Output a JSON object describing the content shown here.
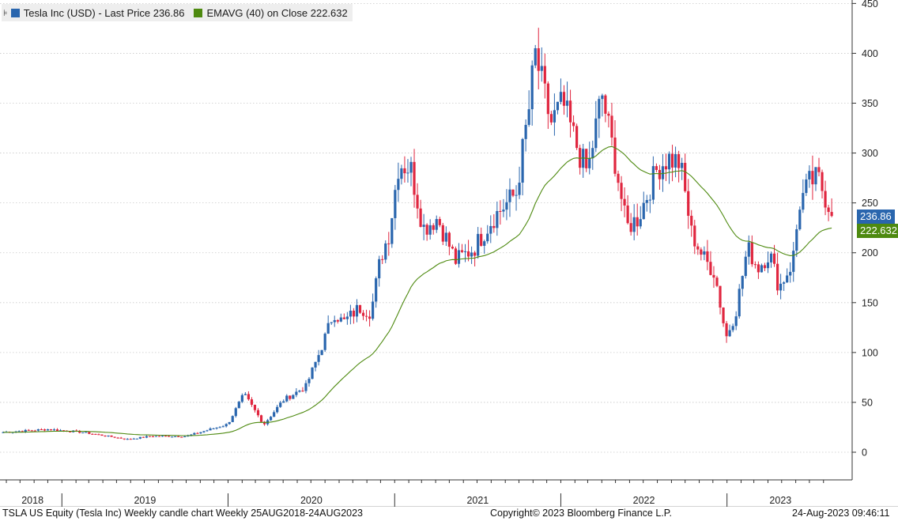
{
  "legend": {
    "series1_label": "Tesla Inc (USD) - Last Price 236.86",
    "series2_label": "EMAVG (40)  on Close 222.632",
    "series1_color": "#2a66ae",
    "series2_color": "#4e8a10"
  },
  "footer": {
    "left": "TSLA US Equity (Tesla Inc) Weekly candle chart  Weekly 25AUG2018-24AUG2023",
    "center": "Copyright© 2023 Bloomberg Finance L.P.",
    "right": "24-Aug-2023 09:46:11"
  },
  "price_tags": {
    "last_price": "236.86",
    "ema": "222.632",
    "last_color": "#2a66ae",
    "ema_color": "#4e8a10"
  },
  "chart_data": {
    "type": "candlestick",
    "frequency": "weekly",
    "range": "25AUG2018-24AUG2023",
    "y_axis": {
      "side": "right",
      "min": -25,
      "max": 450,
      "ticks": [
        0,
        50,
        100,
        150,
        200,
        250,
        300,
        350,
        400,
        450
      ]
    },
    "x_axis": {
      "year_labels": [
        "2018",
        "2019",
        "2020",
        "2021",
        "2022",
        "2023"
      ]
    },
    "grid": "horizontal-dotted",
    "up_color": "#2a66ae",
    "down_color": "#e0263f",
    "series": [
      {
        "name": "Tesla Inc (USD) - Last Price",
        "last": 236.86
      },
      {
        "name": "EMAVG (40) on Close",
        "last": 222.632
      }
    ],
    "price_anchors": [
      [
        "2018-08-25",
        20
      ],
      [
        "2018-12-01",
        23
      ],
      [
        "2019-02-15",
        20
      ],
      [
        "2019-05-25",
        13
      ],
      [
        "2019-07-15",
        16
      ],
      [
        "2019-10-01",
        16
      ],
      [
        "2019-12-31",
        28
      ],
      [
        "2020-02-05",
        58
      ],
      [
        "2020-03-20",
        28
      ],
      [
        "2020-05-01",
        52
      ],
      [
        "2020-06-20",
        66
      ],
      [
        "2020-07-20",
        100
      ],
      [
        "2020-08-20",
        140
      ],
      [
        "2020-09-10",
        130
      ],
      [
        "2020-10-15",
        145
      ],
      [
        "2020-11-10",
        140
      ],
      [
        "2020-12-01",
        195
      ],
      [
        "2020-12-20",
        220
      ],
      [
        "2021-01-10",
        290
      ],
      [
        "2021-02-05",
        285
      ],
      [
        "2021-03-05",
        225
      ],
      [
        "2021-04-05",
        235
      ],
      [
        "2021-05-15",
        192
      ],
      [
        "2021-06-25",
        205
      ],
      [
        "2021-08-05",
        235
      ],
      [
        "2021-09-25",
        260
      ],
      [
        "2021-10-25",
        350
      ],
      [
        "2021-11-05",
        400
      ],
      [
        "2021-12-10",
        330
      ],
      [
        "2022-01-05",
        350
      ],
      [
        "2022-02-10",
        300
      ],
      [
        "2022-03-01",
        280
      ],
      [
        "2022-04-01",
        360
      ],
      [
        "2022-05-01",
        290
      ],
      [
        "2022-05-25",
        225
      ],
      [
        "2022-06-20",
        235
      ],
      [
        "2022-08-01",
        285
      ],
      [
        "2022-08-25",
        295
      ],
      [
        "2022-09-20",
        290
      ],
      [
        "2022-10-15",
        220
      ],
      [
        "2022-11-10",
        195
      ],
      [
        "2022-12-05",
        180
      ],
      [
        "2022-12-30",
        115
      ],
      [
        "2023-01-20",
        140
      ],
      [
        "2023-02-15",
        205
      ],
      [
        "2023-03-10",
        185
      ],
      [
        "2023-04-05",
        200
      ],
      [
        "2023-04-25",
        165
      ],
      [
        "2023-05-25",
        190
      ],
      [
        "2023-06-10",
        250
      ],
      [
        "2023-07-01",
        270
      ],
      [
        "2023-07-20",
        275
      ],
      [
        "2023-08-10",
        250
      ],
      [
        "2023-08-24",
        236.86
      ]
    ]
  }
}
